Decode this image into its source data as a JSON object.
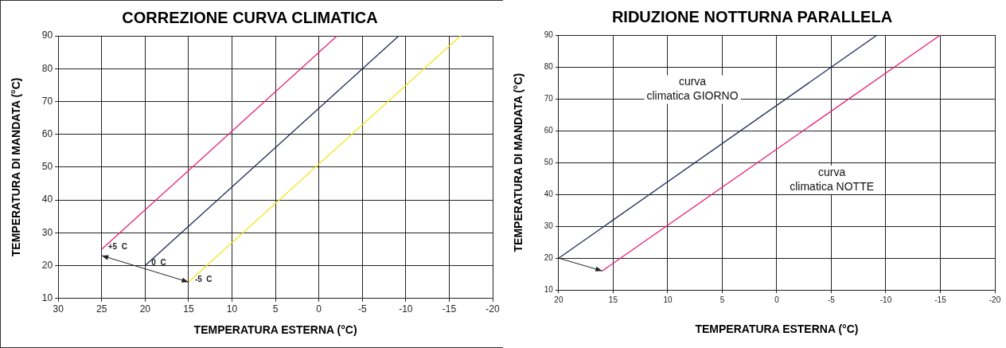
{
  "chart_data": [
    {
      "type": "line",
      "title": "CORREZIONE CURVA CLIMATICA",
      "xlabel": "TEMPERATURA ESTERNA (°C)",
      "ylabel": "TEMPERATURA DI MANDATA (°C)",
      "series": [
        {
          "color": "#e8217a",
          "x": [
            25,
            -2.1
          ],
          "values": [
            25,
            90
          ]
        },
        {
          "color": "#1f2a5a",
          "x": [
            20,
            -9.2
          ],
          "values": [
            20,
            90
          ]
        },
        {
          "color": "#f5e61a",
          "x": [
            15,
            -16.3
          ],
          "values": [
            15,
            90
          ]
        }
      ],
      "xlim": [
        30,
        -20
      ],
      "xticks": [
        30,
        25,
        20,
        15,
        10,
        5,
        0,
        -5,
        -10,
        -15,
        -20
      ],
      "ylim": [
        10,
        90
      ],
      "yticks": [
        10,
        20,
        30,
        40,
        50,
        60,
        70,
        80,
        90
      ],
      "grid": true,
      "legend": false,
      "marker": "none",
      "line_style": "solid",
      "annotations": [
        {
          "text": "+5  C",
          "x": 25,
          "y": 25
        },
        {
          "text": "0  C",
          "x": 20,
          "y": 20
        },
        {
          "text": "-5  C",
          "x": 15,
          "y": 15
        }
      ]
    },
    {
      "type": "line",
      "title": "RIDUZIONE NOTTURNA PARALLELA",
      "xlabel": "TEMPERATURA ESTERNA (°C)",
      "ylabel": "TEMPERATURA DI MANDATA (°C)",
      "series": [
        {
          "name": "curva climatica GIORNO",
          "color": "#1f2a5a",
          "x": [
            20,
            -9.2
          ],
          "values": [
            20,
            90
          ]
        },
        {
          "name": "curva climatica NOTTE",
          "color": "#e8217a",
          "x": [
            16,
            -15
          ],
          "values": [
            16,
            90
          ]
        }
      ],
      "xlim": [
        20,
        -20
      ],
      "xticks": [
        20,
        15,
        10,
        5,
        0,
        -5,
        -10,
        -15,
        -20
      ],
      "ylim": [
        10,
        90
      ],
      "yticks": [
        10,
        20,
        30,
        40,
        50,
        60,
        70,
        80,
        90
      ],
      "grid": true,
      "legend": false,
      "marker": "none",
      "line_style": "solid"
    }
  ]
}
